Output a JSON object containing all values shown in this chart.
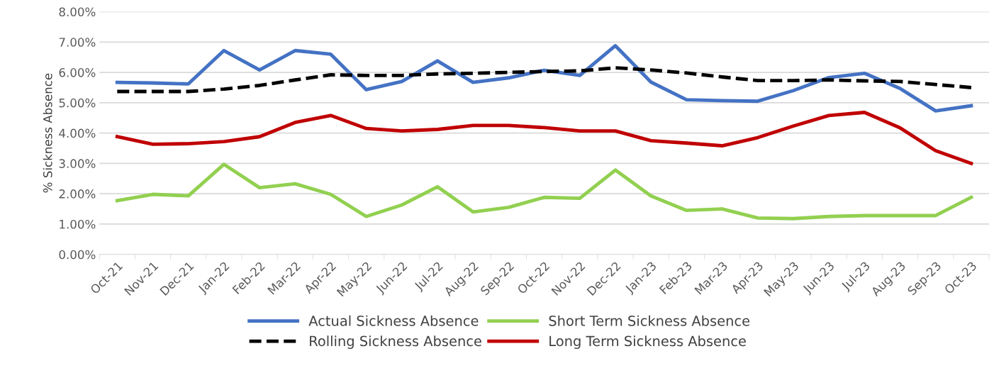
{
  "chart_data": {
    "type": "line",
    "ylabel": "% Sickness Absence",
    "categories": [
      "Oct-21",
      "Nov-21",
      "Dec-21",
      "Jan-22",
      "Feb-22",
      "Mar-22",
      "Apr-22",
      "May-22",
      "Jun-22",
      "Jul-22",
      "Aug-22",
      "Sep-22",
      "Oct-22",
      "Nov-22",
      "Dec-22",
      "Jan-23",
      "Feb-23",
      "Mar-23",
      "Apr-23",
      "May-23",
      "Jun-23",
      "Jul-23",
      "Aug-23",
      "Sep-23",
      "Oct-23"
    ],
    "series": [
      {
        "name": "Actual Sickness Absence",
        "color": "#4472c4",
        "line_style": "solid",
        "values": [
          5.67,
          5.65,
          5.62,
          6.72,
          6.08,
          6.72,
          6.6,
          5.43,
          5.7,
          6.38,
          5.67,
          5.82,
          6.07,
          5.9,
          6.88,
          5.68,
          5.1,
          5.07,
          5.05,
          5.4,
          5.83,
          5.97,
          5.47,
          4.73,
          4.9
        ]
      },
      {
        "name": "Rolling Sickness Absence",
        "color": "#000000",
        "line_style": "dashed",
        "values": [
          5.37,
          5.37,
          5.37,
          5.45,
          5.57,
          5.75,
          5.92,
          5.9,
          5.9,
          5.95,
          5.97,
          6.0,
          6.03,
          6.05,
          6.15,
          6.08,
          5.98,
          5.85,
          5.73,
          5.73,
          5.75,
          5.72,
          5.7,
          5.6,
          5.5
        ]
      },
      {
        "name": "Short Term Sickness Absence",
        "color": "#92d050",
        "line_style": "solid",
        "values": [
          1.77,
          1.98,
          1.93,
          2.97,
          2.2,
          2.33,
          1.98,
          1.25,
          1.63,
          2.23,
          1.4,
          1.55,
          1.88,
          1.85,
          2.78,
          1.93,
          1.45,
          1.5,
          1.2,
          1.18,
          1.25,
          1.28,
          1.28,
          1.28,
          1.88
        ]
      },
      {
        "name": "Long Term Sickness Absence",
        "color": "#c00000",
        "line_style": "solid",
        "values": [
          3.88,
          3.63,
          3.65,
          3.72,
          3.88,
          4.35,
          4.58,
          4.15,
          4.07,
          4.12,
          4.25,
          4.25,
          4.18,
          4.07,
          4.07,
          3.75,
          3.67,
          3.58,
          3.85,
          4.23,
          4.58,
          4.68,
          4.17,
          3.42,
          3.0
        ]
      }
    ],
    "ylim": [
      0,
      8
    ],
    "yticks": [
      {
        "value": 0,
        "label": "0.00%"
      },
      {
        "value": 1,
        "label": "1.00%"
      },
      {
        "value": 2,
        "label": "2.00%"
      },
      {
        "value": 3,
        "label": "3.00%"
      },
      {
        "value": 4,
        "label": "4.00%"
      },
      {
        "value": 5,
        "label": "5.00%"
      },
      {
        "value": 6,
        "label": "6.00%"
      },
      {
        "value": 7,
        "label": "7.00%"
      },
      {
        "value": 8,
        "label": "8.00%"
      }
    ],
    "grid": "y",
    "legend": "bottom",
    "marker": "none"
  }
}
